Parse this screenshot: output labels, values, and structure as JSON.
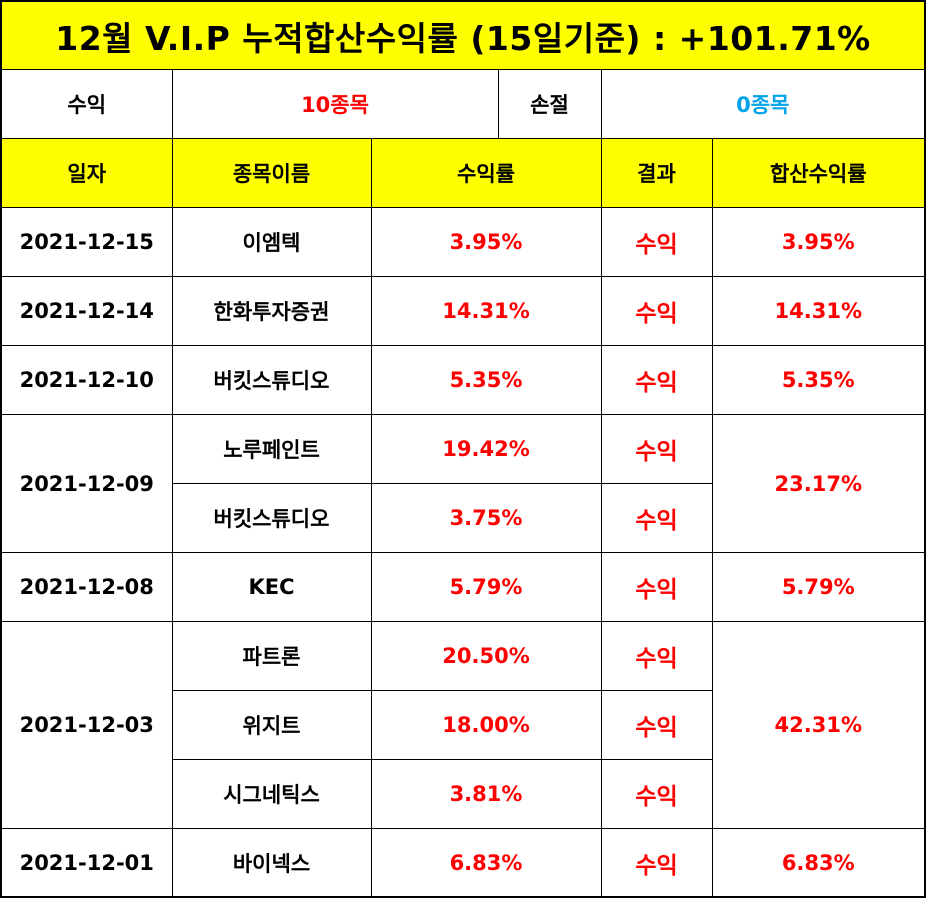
{
  "title": "12월 V.I.P 누적합산수익률 (15일기준) : +101.71%",
  "summary": {
    "profit_label": "수익",
    "profit_value": "10종목",
    "loss_label": "손절",
    "loss_value": "0종목"
  },
  "headers": [
    "일자",
    "종목이름",
    "수익률",
    "결과",
    "합산수익률"
  ],
  "rows": [
    {
      "date": "2021-12-15",
      "name": "이엠텍",
      "rate": "3.95%",
      "result": "수익",
      "total": "3.95%"
    },
    {
      "date": "2021-12-14",
      "name": "한화투자증권",
      "rate": "14.31%",
      "result": "수익",
      "total": "14.31%"
    },
    {
      "date": "2021-12-10",
      "name": "버킷스튜디오",
      "rate": "5.35%",
      "result": "수익",
      "total": "5.35%"
    },
    {
      "date": "2021-12-09",
      "name": "노루페인트",
      "rate": "19.42%",
      "result": "수익",
      "total": "23.17%"
    },
    {
      "date": "",
      "name": "버킷스튜디오",
      "rate": "3.75%",
      "result": "수익",
      "total": ""
    },
    {
      "date": "2021-12-08",
      "name": "KEC",
      "rate": "5.79%",
      "result": "수익",
      "total": "5.79%"
    },
    {
      "date": "2021-12-03",
      "name": "파트론",
      "rate": "20.50%",
      "result": "수익",
      "total": "42.31%"
    },
    {
      "date": "",
      "name": "위지트",
      "rate": "18.00%",
      "result": "수익",
      "total": ""
    },
    {
      "date": "",
      "name": "시그네틱스",
      "rate": "3.81%",
      "result": "수익",
      "total": ""
    },
    {
      "date": "2021-12-01",
      "name": "바이넥스",
      "rate": "6.83%",
      "result": "수익",
      "total": "6.83%"
    }
  ],
  "colors": {
    "header_bg": "#ffff00",
    "profit": "#ff0000",
    "loss": "#00a2e8"
  }
}
